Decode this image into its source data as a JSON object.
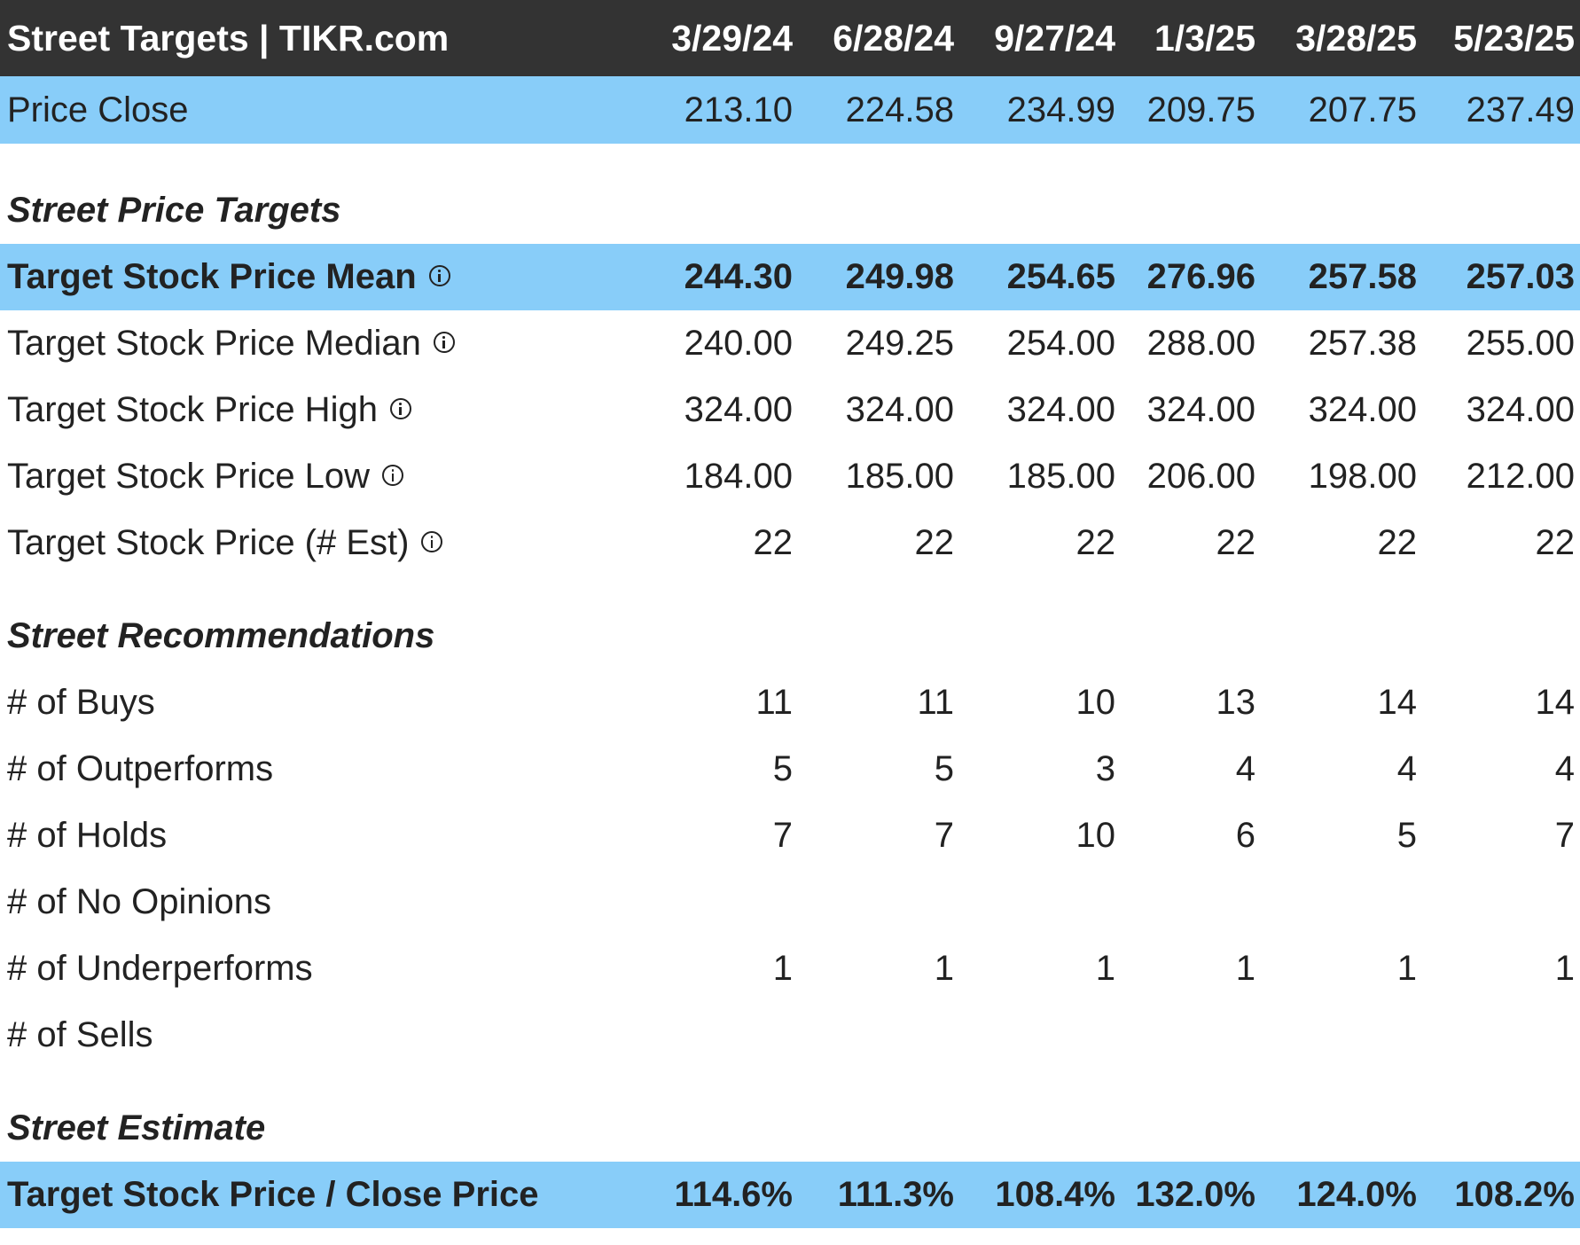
{
  "header": {
    "title": "Street Targets | TIKR.com",
    "dates": [
      "3/29/24",
      "6/28/24",
      "9/27/24",
      "1/3/25",
      "3/28/25",
      "5/23/25"
    ]
  },
  "price_close": {
    "label": "Price Close",
    "values": [
      "213.10",
      "224.58",
      "234.99",
      "209.75",
      "207.75",
      "237.49"
    ]
  },
  "sections": {
    "price_targets": "Street Price Targets",
    "recommendations": "Street Recommendations",
    "estimate": "Street Estimate"
  },
  "targets": [
    {
      "label": "Target Stock Price Mean",
      "values": [
        "244.30",
        "249.98",
        "254.65",
        "276.96",
        "257.58",
        "257.03"
      ]
    },
    {
      "label": "Target Stock Price Median",
      "values": [
        "240.00",
        "249.25",
        "254.00",
        "288.00",
        "257.38",
        "255.00"
      ]
    },
    {
      "label": "Target Stock Price High",
      "values": [
        "324.00",
        "324.00",
        "324.00",
        "324.00",
        "324.00",
        "324.00"
      ]
    },
    {
      "label": "Target Stock Price Low",
      "values": [
        "184.00",
        "185.00",
        "185.00",
        "206.00",
        "198.00",
        "212.00"
      ]
    },
    {
      "label": "Target Stock Price (# Est)",
      "values": [
        "22",
        "22",
        "22",
        "22",
        "22",
        "22"
      ]
    }
  ],
  "recommendations": [
    {
      "label": "# of Buys",
      "values": [
        "11",
        "11",
        "10",
        "13",
        "14",
        "14"
      ]
    },
    {
      "label": "# of Outperforms",
      "values": [
        "5",
        "5",
        "3",
        "4",
        "4",
        "4"
      ]
    },
    {
      "label": "# of Holds",
      "values": [
        "7",
        "7",
        "10",
        "6",
        "5",
        "7"
      ]
    },
    {
      "label": "# of No Opinions",
      "values": [
        "",
        "",
        "",
        "",
        "",
        ""
      ]
    },
    {
      "label": "# of Underperforms",
      "values": [
        "1",
        "1",
        "1",
        "1",
        "1",
        "1"
      ]
    },
    {
      "label": "# of Sells",
      "values": [
        "",
        "",
        "",
        "",
        "",
        ""
      ]
    }
  ],
  "estimate": {
    "label": "Target Stock Price / Close Price",
    "values": [
      "114.6%",
      "111.3%",
      "108.4%",
      "132.0%",
      "124.0%",
      "108.2%"
    ]
  },
  "colors": {
    "header_bg": "#333333",
    "highlight_bg": "#88cdf9",
    "text": "#222222"
  },
  "icons": {
    "info": "info-circle-icon"
  }
}
